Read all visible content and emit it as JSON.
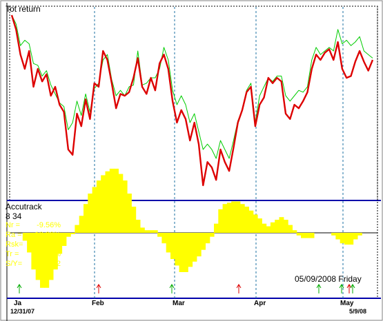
{
  "chart_data": [
    {
      "type": "line",
      "title": "Tot return",
      "grid": true,
      "gridlines": "vertical dashed at month boundaries",
      "series": [
        {
          "color": "#dd0000",
          "values": [
            100,
            92,
            78,
            70,
            80,
            60,
            70,
            63,
            67,
            55,
            60,
            50,
            46,
            25,
            22,
            45,
            38,
            53,
            42,
            62,
            60,
            80,
            75,
            62,
            48,
            56,
            55,
            57,
            65,
            76,
            60,
            56,
            65,
            58,
            73,
            78,
            70,
            52,
            40,
            47,
            42,
            30,
            40,
            28,
            5,
            18,
            15,
            8,
            25,
            18,
            13,
            26,
            40,
            47,
            57,
            60,
            38,
            50,
            54,
            65,
            62,
            65,
            63,
            45,
            42,
            50,
            48,
            52,
            57,
            70,
            78,
            75,
            79,
            81,
            75,
            85,
            70,
            65,
            66,
            74,
            80,
            74,
            69,
            75
          ]
        },
        {
          "color": "#00cc00",
          "values": [
            100,
            95,
            83,
            86,
            84,
            73,
            72,
            66,
            69,
            61,
            56,
            51,
            49,
            36,
            40,
            52,
            44,
            56,
            46,
            59,
            62,
            75,
            78,
            64,
            55,
            58,
            55,
            60,
            61,
            80,
            61,
            62,
            65,
            65,
            70,
            82,
            75,
            58,
            50,
            55,
            50,
            40,
            45,
            35,
            25,
            28,
            25,
            20,
            30,
            25,
            20,
            30,
            41,
            47,
            58,
            62,
            40,
            55,
            60,
            65,
            63,
            66,
            66,
            55,
            52,
            55,
            58,
            57,
            60,
            75,
            82,
            78,
            80,
            82,
            80,
            92,
            84,
            86,
            83,
            85,
            88,
            80,
            78,
            76
          ]
        }
      ]
    },
    {
      "type": "bar",
      "title": "Accutrack",
      "subtitle": "8 34",
      "color": "#ffff00",
      "values": [
        0,
        0,
        0,
        -6,
        -15,
        -28,
        -36,
        -42,
        -42,
        -36,
        -28,
        -16,
        -10,
        -3,
        -1,
        6,
        13,
        22,
        30,
        35,
        40,
        44,
        47,
        49,
        49,
        45,
        40,
        30,
        20,
        10,
        4,
        2,
        2,
        2,
        -3,
        -8,
        -15,
        -20,
        -25,
        -30,
        -30,
        -26,
        -22,
        -18,
        -13,
        -8,
        -3,
        7,
        18,
        22,
        23,
        24,
        24,
        22,
        20,
        17,
        14,
        11,
        7,
        5,
        8,
        10,
        12,
        10,
        6,
        2,
        -2,
        -4,
        -4,
        -4,
        0,
        0,
        0,
        0,
        -2,
        -5,
        -8,
        -9,
        -9,
        -5,
        -2,
        0,
        0,
        0
      ],
      "stats": [
        {
          "label": "Nr =",
          "value": "-9.56%"
        },
        {
          "label": "Ra =",
          "value": "-10.39%"
        },
        {
          "label": "Rsk=",
          "value": "47.25%"
        },
        {
          "label": "Tr =",
          "value": "-10.06%"
        },
        {
          "label": "S/Y=",
          "value": "8.42"
        }
      ],
      "date_label": "05/09/2008 Friday"
    }
  ],
  "x_axis": {
    "months": [
      "Ja",
      "Feb",
      "Mar",
      "Apr",
      "May"
    ],
    "start_date": "12/31/07",
    "end_date": "5/9/08"
  },
  "signals": [
    {
      "type": "buy",
      "color": "#00aa00"
    },
    {
      "type": "sell",
      "color": "#dd0000"
    },
    {
      "type": "buy",
      "color": "#00aa00"
    },
    {
      "type": "sell",
      "color": "#dd0000"
    },
    {
      "type": "buy",
      "color": "#00aa00"
    },
    {
      "type": "buy",
      "color": "#00aa00"
    },
    {
      "type": "sell",
      "color": "#dd0000"
    },
    {
      "type": "buy",
      "color": "#00aa00"
    }
  ]
}
